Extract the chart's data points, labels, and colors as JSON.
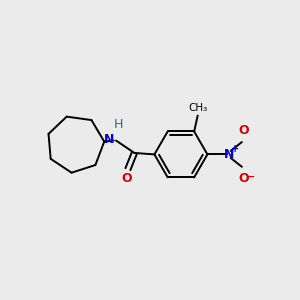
{
  "background_color": "#ebebeb",
  "bond_color": "#000000",
  "N_color": "#0000cc",
  "O_color": "#dd0000",
  "H_color": "#008080",
  "figsize": [
    3.0,
    3.0
  ],
  "dpi": 100,
  "xlim": [
    0,
    10
  ],
  "ylim": [
    0,
    10
  ],
  "bond_lw": 1.4,
  "ring_lw": 1.4
}
